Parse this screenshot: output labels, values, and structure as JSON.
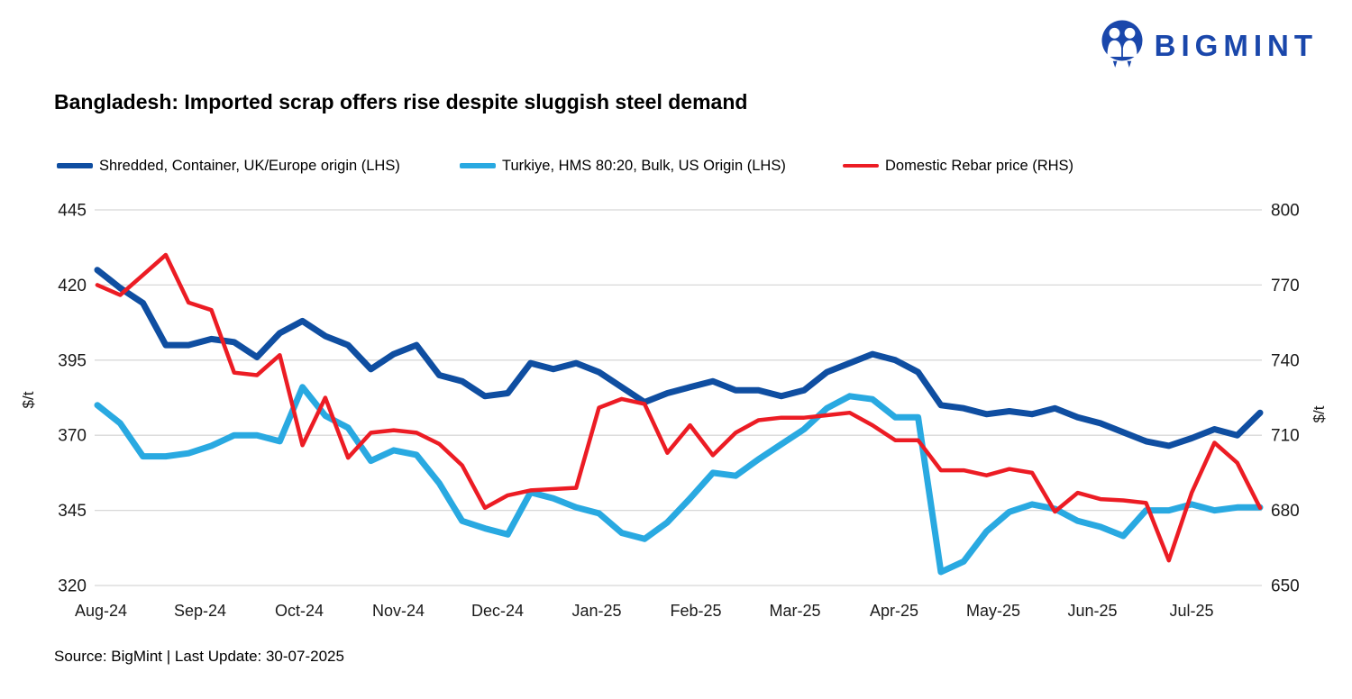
{
  "logo": {
    "text": "BIGMINT"
  },
  "title": "Bangladesh: Imported scrap offers rise despite sluggish steel demand",
  "source": "Source: BigMint | Last Update: 30-07-2025",
  "legend": [
    {
      "label": "Shredded, Container, UK/Europe origin (LHS)",
      "color": "#0f4ea1"
    },
    {
      "label": "Turkiye, HMS 80:20, Bulk, US Origin (LHS)",
      "color": "#29a9e1"
    },
    {
      "label": "Domestic Rebar price (RHS)",
      "color": "#ec1c24"
    }
  ],
  "chart_data": {
    "type": "line",
    "title": "Bangladesh: Imported scrap offers rise despite sluggish steel demand",
    "x_labels": [
      "Aug-24",
      "Sep-24",
      "Oct-24",
      "Nov-24",
      "Dec-24",
      "Jan-25",
      "Feb-25",
      "Mar-25",
      "Apr-25",
      "May-25",
      "Jun-25",
      "Jul-25"
    ],
    "x_frequency": "weekly",
    "grid": true,
    "legend_position": "top",
    "grid_color": "#d8d8d8",
    "left_axis": {
      "label": "$/t",
      "min": 320,
      "max": 445,
      "ticks": [
        445,
        420,
        395,
        370,
        345,
        320
      ]
    },
    "right_axis": {
      "label": "$/t",
      "min": 650,
      "max": 800,
      "ticks": [
        800,
        770,
        740,
        710,
        680,
        650
      ]
    },
    "series": [
      {
        "name": "Shredded, Container, UK/Europe origin (LHS)",
        "axis": "left",
        "color": "#0f4ea1",
        "stroke_width": 7,
        "values": [
          425,
          419,
          414,
          400,
          400,
          402,
          401,
          396,
          404,
          408,
          403,
          400,
          392,
          397,
          400,
          390,
          388,
          383,
          384,
          394,
          392,
          394,
          391,
          386,
          381,
          384,
          386,
          388,
          385,
          385,
          383,
          385,
          391,
          394,
          397,
          395,
          391,
          380,
          379,
          377,
          378,
          377,
          379,
          376,
          374,
          371,
          368,
          366.5,
          369,
          372,
          370,
          377.5
        ]
      },
      {
        "name": "Turkiye, HMS 80:20, Bulk, US Origin (LHS)",
        "axis": "left",
        "color": "#29a9e1",
        "stroke_width": 7,
        "values": [
          380,
          374,
          363,
          363,
          364,
          366.5,
          370,
          370,
          368,
          386,
          376.5,
          372.5,
          361.5,
          365,
          363.5,
          354,
          341.5,
          339,
          337,
          351,
          349,
          346,
          344,
          337.5,
          335.5,
          341,
          349,
          357.5,
          356.5,
          362,
          367,
          372,
          379,
          383,
          382,
          376,
          376,
          324.5,
          328,
          338,
          344.5,
          347,
          345.5,
          341.5,
          339.5,
          336.5,
          345,
          345,
          347,
          345,
          346,
          346
        ]
      },
      {
        "name": "Domestic Rebar price (RHS)",
        "axis": "right",
        "color": "#ec1c24",
        "stroke_width": 4.5,
        "values": [
          770,
          766,
          774,
          782,
          763,
          760,
          735,
          734,
          742,
          706,
          725,
          701,
          711,
          712,
          711,
          706.5,
          698,
          681,
          686,
          688,
          688.5,
          689,
          721,
          724.5,
          722.5,
          703,
          714,
          702,
          711,
          716,
          717,
          717,
          718,
          719,
          714,
          708,
          708,
          696,
          696,
          694,
          696.5,
          695,
          679.5,
          687,
          684.5,
          684,
          683,
          660,
          687,
          707,
          699,
          681
        ]
      }
    ]
  }
}
